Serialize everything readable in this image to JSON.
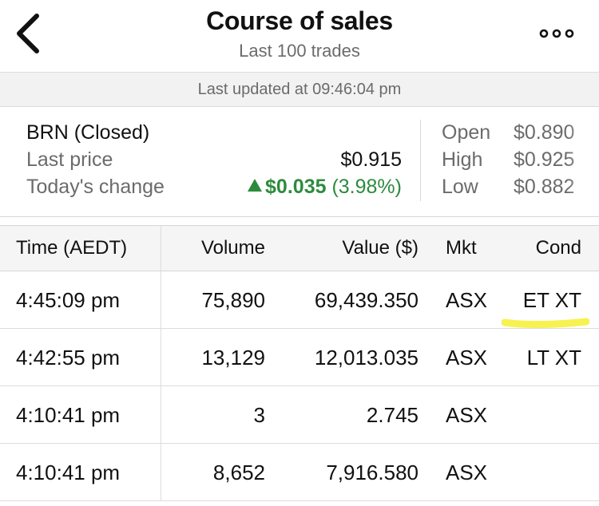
{
  "header": {
    "title": "Course of sales",
    "subtitle": "Last 100 trades",
    "back_icon": "chevron-left-icon",
    "more_icon": "more-horizontal-icon"
  },
  "updated": "Last updated at 09:46:04 pm",
  "summary": {
    "name": "BRN (Closed)",
    "last_price_label": "Last price",
    "last_price": "$0.915",
    "change_label": "Today's change",
    "change_value": "$0.035",
    "change_pct": "(3.98%)",
    "open_label": "Open",
    "open": "$0.890",
    "high_label": "High",
    "high": "$0.925",
    "low_label": "Low",
    "low": "$0.882",
    "up_color": "#2e8b3e"
  },
  "table": {
    "headers": [
      "Time (AEDT)",
      "Volume",
      "Value ($)",
      "Mkt",
      "Cond"
    ],
    "rows": [
      {
        "time": "4:45:09 pm",
        "volume": "75,890",
        "value": "69,439.350",
        "mkt": "ASX",
        "cond": "ET XT"
      },
      {
        "time": "4:42:55 pm",
        "volume": "13,129",
        "value": "12,013.035",
        "mkt": "ASX",
        "cond": "LT XT"
      },
      {
        "time": "4:10:41 pm",
        "volume": "3",
        "value": "2.745",
        "mkt": "ASX",
        "cond": ""
      },
      {
        "time": "4:10:41 pm",
        "volume": "8,652",
        "value": "7,916.580",
        "mkt": "ASX",
        "cond": ""
      }
    ]
  },
  "highlight_color": "#f7f250"
}
